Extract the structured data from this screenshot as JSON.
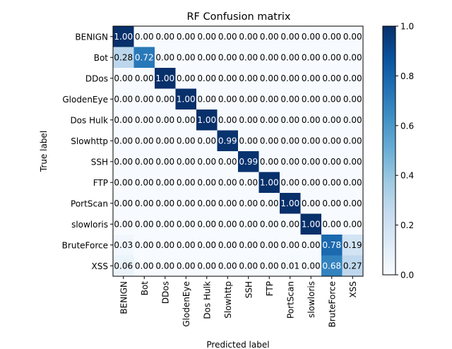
{
  "chart_data": {
    "type": "heatmap",
    "title": "RF Confusion matrix",
    "xlabel": "Predicted label",
    "ylabel": "True label",
    "row_labels": [
      "BENIGN",
      "Bot",
      "DDos",
      "GlodenEye",
      "Dos Hulk",
      "Slowhttp",
      "SSH",
      "FTP",
      "PortScan",
      "slowloris",
      "BruteForce",
      "XSS"
    ],
    "col_labels": [
      "BENIGN",
      "Bot",
      "DDos",
      "GlodenEye",
      "Dos Hulk",
      "Slowhttp",
      "SSH",
      "FTP",
      "PortScan",
      "slowloris",
      "BruteForce",
      "XSS"
    ],
    "values": [
      [
        1.0,
        0.0,
        0.0,
        0.0,
        0.0,
        0.0,
        0.0,
        0.0,
        0.0,
        0.0,
        0.0,
        0.0
      ],
      [
        0.28,
        0.72,
        0.0,
        0.0,
        0.0,
        0.0,
        0.0,
        0.0,
        0.0,
        0.0,
        0.0,
        0.0
      ],
      [
        0.0,
        0.0,
        1.0,
        0.0,
        0.0,
        0.0,
        0.0,
        0.0,
        0.0,
        0.0,
        0.0,
        0.0
      ],
      [
        0.0,
        0.0,
        0.0,
        1.0,
        0.0,
        0.0,
        0.0,
        0.0,
        0.0,
        0.0,
        0.0,
        0.0
      ],
      [
        0.0,
        0.0,
        0.0,
        0.0,
        1.0,
        0.0,
        0.0,
        0.0,
        0.0,
        0.0,
        0.0,
        0.0
      ],
      [
        0.0,
        0.0,
        0.0,
        0.0,
        0.0,
        0.99,
        0.0,
        0.0,
        0.0,
        0.0,
        0.0,
        0.0
      ],
      [
        0.0,
        0.0,
        0.0,
        0.0,
        0.0,
        0.0,
        0.99,
        0.0,
        0.0,
        0.0,
        0.0,
        0.0
      ],
      [
        0.0,
        0.0,
        0.0,
        0.0,
        0.0,
        0.0,
        0.0,
        1.0,
        0.0,
        0.0,
        0.0,
        0.0
      ],
      [
        0.0,
        0.0,
        0.0,
        0.0,
        0.0,
        0.0,
        0.0,
        0.0,
        1.0,
        0.0,
        0.0,
        0.0
      ],
      [
        0.0,
        0.0,
        0.0,
        0.0,
        0.0,
        0.0,
        0.0,
        0.0,
        0.0,
        1.0,
        0.0,
        0.0
      ],
      [
        0.03,
        0.0,
        0.0,
        0.0,
        0.0,
        0.0,
        0.0,
        0.0,
        0.0,
        0.0,
        0.78,
        0.19
      ],
      [
        0.06,
        0.0,
        0.0,
        0.0,
        0.0,
        0.0,
        0.0,
        0.0,
        0.01,
        0.0,
        0.68,
        0.27
      ]
    ],
    "value_labels": [
      [
        "1.00",
        "0.00",
        "0.00",
        "0.00",
        "0.00",
        "0.00",
        "0.00",
        "0.00",
        "0.00",
        "0.00",
        "0.00",
        "0.00"
      ],
      [
        "0.28",
        "0.72",
        "0.00",
        "0.00",
        "0.00",
        "0.00",
        "0.00",
        "0.00",
        "0.00",
        "0.00",
        "0.00",
        "0.00"
      ],
      [
        "0.00",
        "0.00",
        "1.00",
        "0.00",
        "0.00",
        "0.00",
        "0.00",
        "0.00",
        "0.00",
        "0.00",
        "0.00",
        "0.00"
      ],
      [
        "0.00",
        "0.00",
        "0.00",
        "1.00",
        "0.00",
        "0.00",
        "0.00",
        "0.00",
        "0.00",
        "0.00",
        "0.00",
        "0.00"
      ],
      [
        "0.00",
        "0.00",
        "0.00",
        "0.00",
        "1.00",
        "0.00",
        "0.00",
        "0.00",
        "0.00",
        "0.00",
        "0.00",
        "0.00"
      ],
      [
        "0.00",
        "0.00",
        "0.00",
        "0.00",
        "0.00",
        "0.99",
        "0.00",
        "0.00",
        "0.00",
        "0.00",
        "0.00",
        "0.00"
      ],
      [
        "0.00",
        "0.00",
        "0.00",
        "0.00",
        "0.00",
        "0.00",
        "0.99",
        "0.00",
        "0.00",
        "0.00",
        "0.00",
        "0.00"
      ],
      [
        "0.00",
        "0.00",
        "0.00",
        "0.00",
        "0.00",
        "0.00",
        "0.00",
        "1.00",
        "0.00",
        "0.00",
        "0.00",
        "0.00"
      ],
      [
        "0.00",
        "0.00",
        "0.00",
        "0.00",
        "0.00",
        "0.00",
        "0.00",
        "0.00",
        "1.00",
        "0.00",
        "0.00",
        "0.00"
      ],
      [
        "0.00",
        "0.00",
        "0.00",
        "0.00",
        "0.00",
        "0.00",
        "0.00",
        "0.00",
        "0.00",
        "1.00",
        "0.00",
        "0.00"
      ],
      [
        "0.03",
        "0.00",
        "0.00",
        "0.00",
        "0.00",
        "0.00",
        "0.00",
        "0.00",
        "0.00",
        "0.00",
        "0.78",
        "0.19"
      ],
      [
        "0.06",
        "0.00",
        "0.00",
        "0.00",
        "0.00",
        "0.00",
        "0.00",
        "0.00",
        "0.01",
        "0.00",
        "0.68",
        "0.27"
      ]
    ],
    "colormap": "Blues",
    "colorbar": {
      "min": 0.0,
      "max": 1.0,
      "ticks": [
        "0.0",
        "0.2",
        "0.4",
        "0.6",
        "0.8",
        "1.0"
      ]
    },
    "text_colors": {
      "light": "#ffffff",
      "dark": "#000000"
    },
    "grid": false
  }
}
